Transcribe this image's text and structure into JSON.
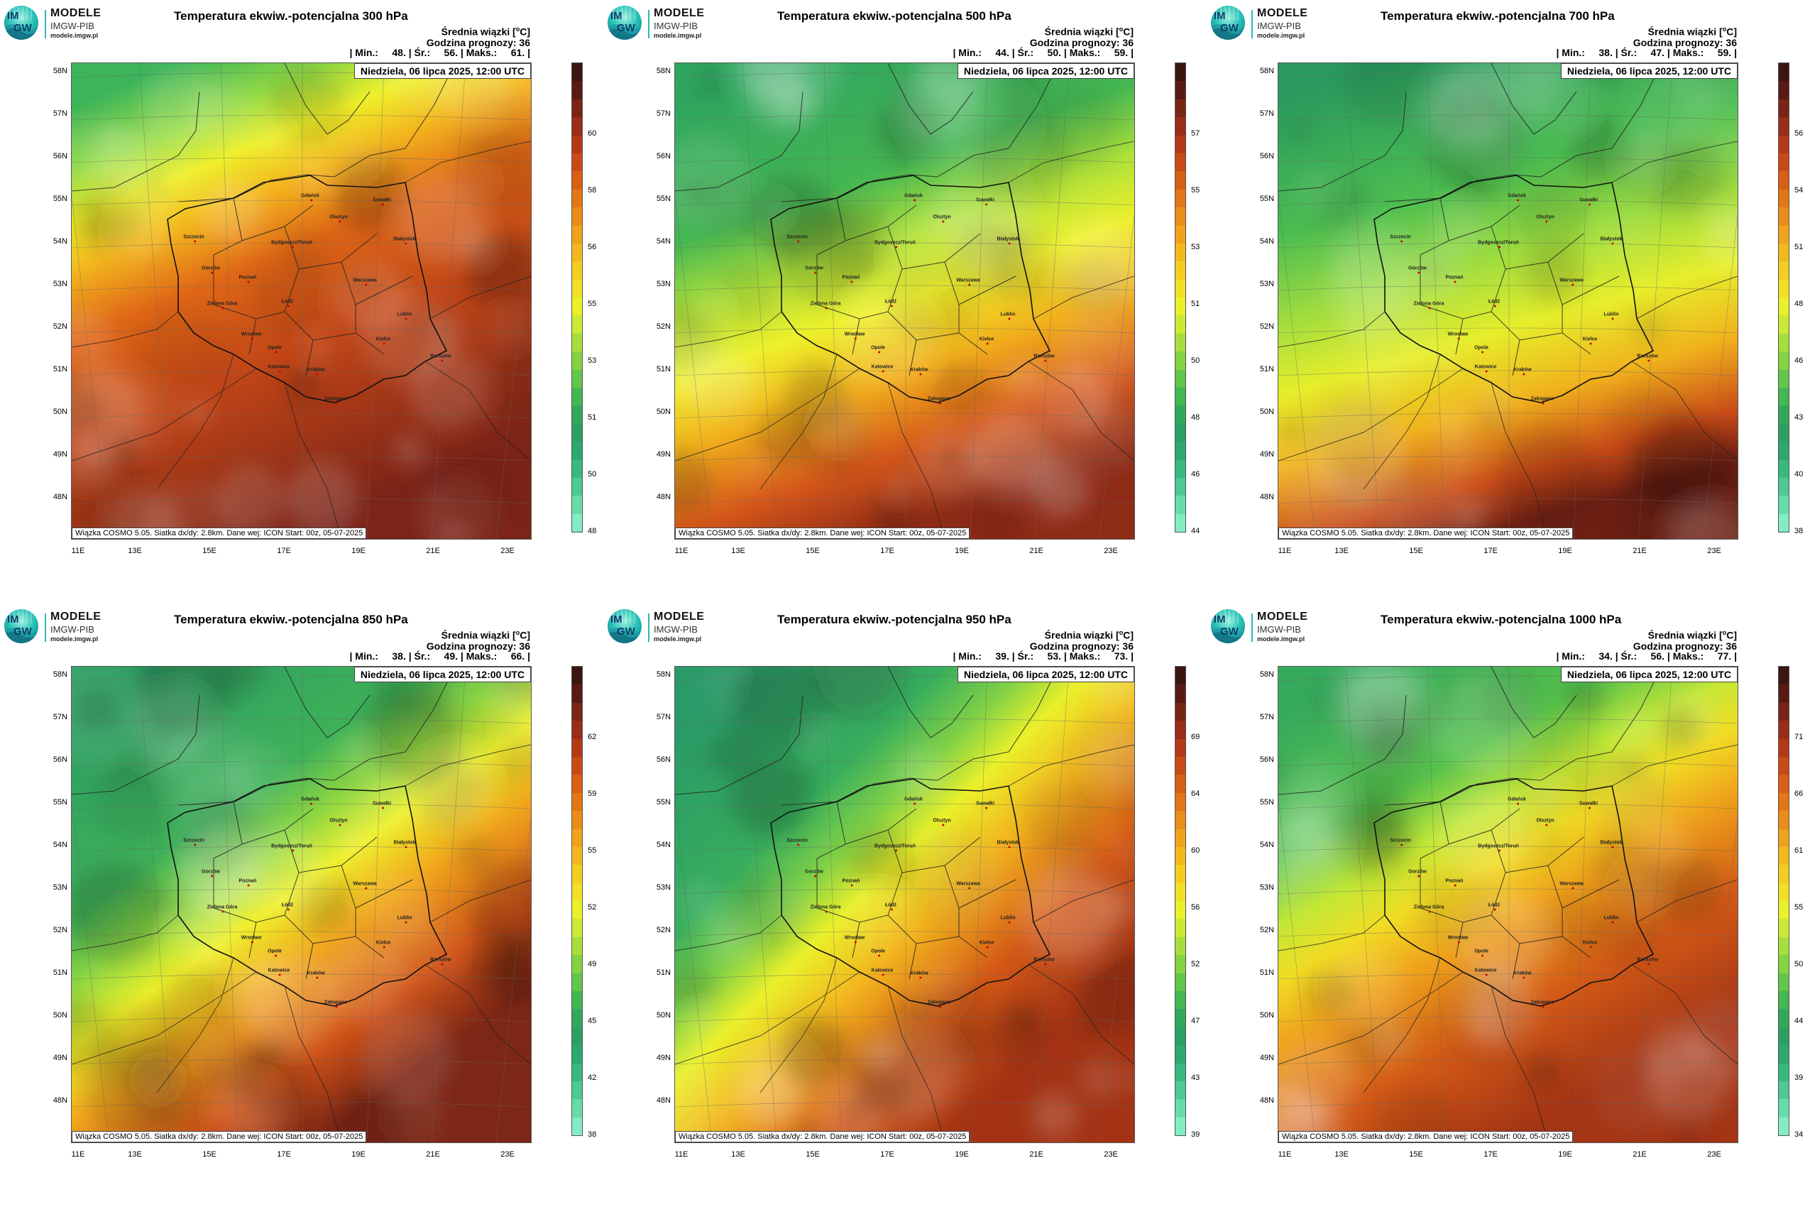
{
  "logo": {
    "im": "IM",
    "gw": "GW",
    "line1": "MODELE",
    "line2": "IMGW-PIB",
    "line3": "modele.imgw.pl"
  },
  "common": {
    "meta_line1": "Średnia wiązki [",
    "meta_unit": "o",
    "meta_unit2": "C]",
    "meta_line2": "Godzina prognozy: 36",
    "date": "Niedziela, 06 lipca 2025, 12:00 UTC",
    "footer": "Wiązka COSMO 5.05. Siatka dx/dy: 2.8km. Dane wej: ICON Start: 00z, 05-07-2025",
    "lat_labels": [
      "58N",
      "57N",
      "56N",
      "55N",
      "54N",
      "53N",
      "52N",
      "51N",
      "50N",
      "49N",
      "48N"
    ],
    "lon_labels": [
      "11E",
      "13E",
      "15E",
      "17E",
      "19E",
      "21E",
      "23E"
    ],
    "colorbar_colors": [
      "#3c1410",
      "#5a1a14",
      "#7a2416",
      "#992d17",
      "#b43a17",
      "#c94a16",
      "#d95f14",
      "#e37615",
      "#ea8d18",
      "#efa31c",
      "#f2b91f",
      "#f4cd22",
      "#f3df25",
      "#eaf02a",
      "#cbea34",
      "#a7de3c",
      "#84d343",
      "#62c64a",
      "#43b752",
      "#31a95a",
      "#2aa163",
      "#2ea86e",
      "#39b880",
      "#4cc995",
      "#66dcab",
      "#84ecc3"
    ],
    "cities": [
      "Gdańsk",
      "Olsztyn",
      "Suwałki",
      "Białystok",
      "Szczecin",
      "Bydgoszcz/Toruń",
      "Gorzów",
      "Poznań",
      "Warszawa",
      "Zielona Góra",
      "Łódź",
      "Lublin",
      "Wrocław",
      "Kielce",
      "Opole",
      "Rzeszów",
      "Katowice",
      "Kraków",
      "Zakopane"
    ]
  },
  "panels": [
    {
      "title": "Temperatura ekwiw.-potencjalna 300 hPa",
      "stats": "| Min.:     48. | Śr.:     56. | Maks.:     61. |",
      "colorbar_ticks": [
        "48",
        "50",
        "51",
        "53",
        "55",
        "56",
        "58",
        "60"
      ]
    },
    {
      "title": "Temperatura ekwiw.-potencjalna 500 hPa",
      "stats": "| Min.:     44. | Śr.:     50. | Maks.:     59. |",
      "colorbar_ticks": [
        "44",
        "46",
        "48",
        "50",
        "51",
        "53",
        "55",
        "57"
      ]
    },
    {
      "title": "Temperatura ekwiw.-potencjalna 700 hPa",
      "stats": "| Min.:     38. | Śr.:     47. | Maks.:     59. |",
      "colorbar_ticks": [
        "38",
        "40",
        "43",
        "46",
        "48",
        "51",
        "54",
        "56"
      ]
    },
    {
      "title": "Temperatura ekwiw.-potencjalna 850 hPa",
      "stats": "| Min.:     38. | Śr.:     49. | Maks.:     66. |",
      "colorbar_ticks": [
        "38",
        "42",
        "45",
        "49",
        "52",
        "55",
        "59",
        "62"
      ]
    },
    {
      "title": "Temperatura ekwiw.-potencjalna 950 hPa",
      "stats": "| Min.:     39. | Śr.:     53. | Maks.:     73. |",
      "colorbar_ticks": [
        "39",
        "43",
        "47",
        "52",
        "56",
        "60",
        "64",
        "69"
      ]
    },
    {
      "title": "Temperatura ekwiw.-potencjalna 1000 hPa",
      "stats": "| Min.:     34. | Śr.:     56. | Maks.:     77. |",
      "colorbar_ticks": [
        "34",
        "39",
        "44",
        "50",
        "55",
        "61",
        "66",
        "71"
      ]
    }
  ]
}
